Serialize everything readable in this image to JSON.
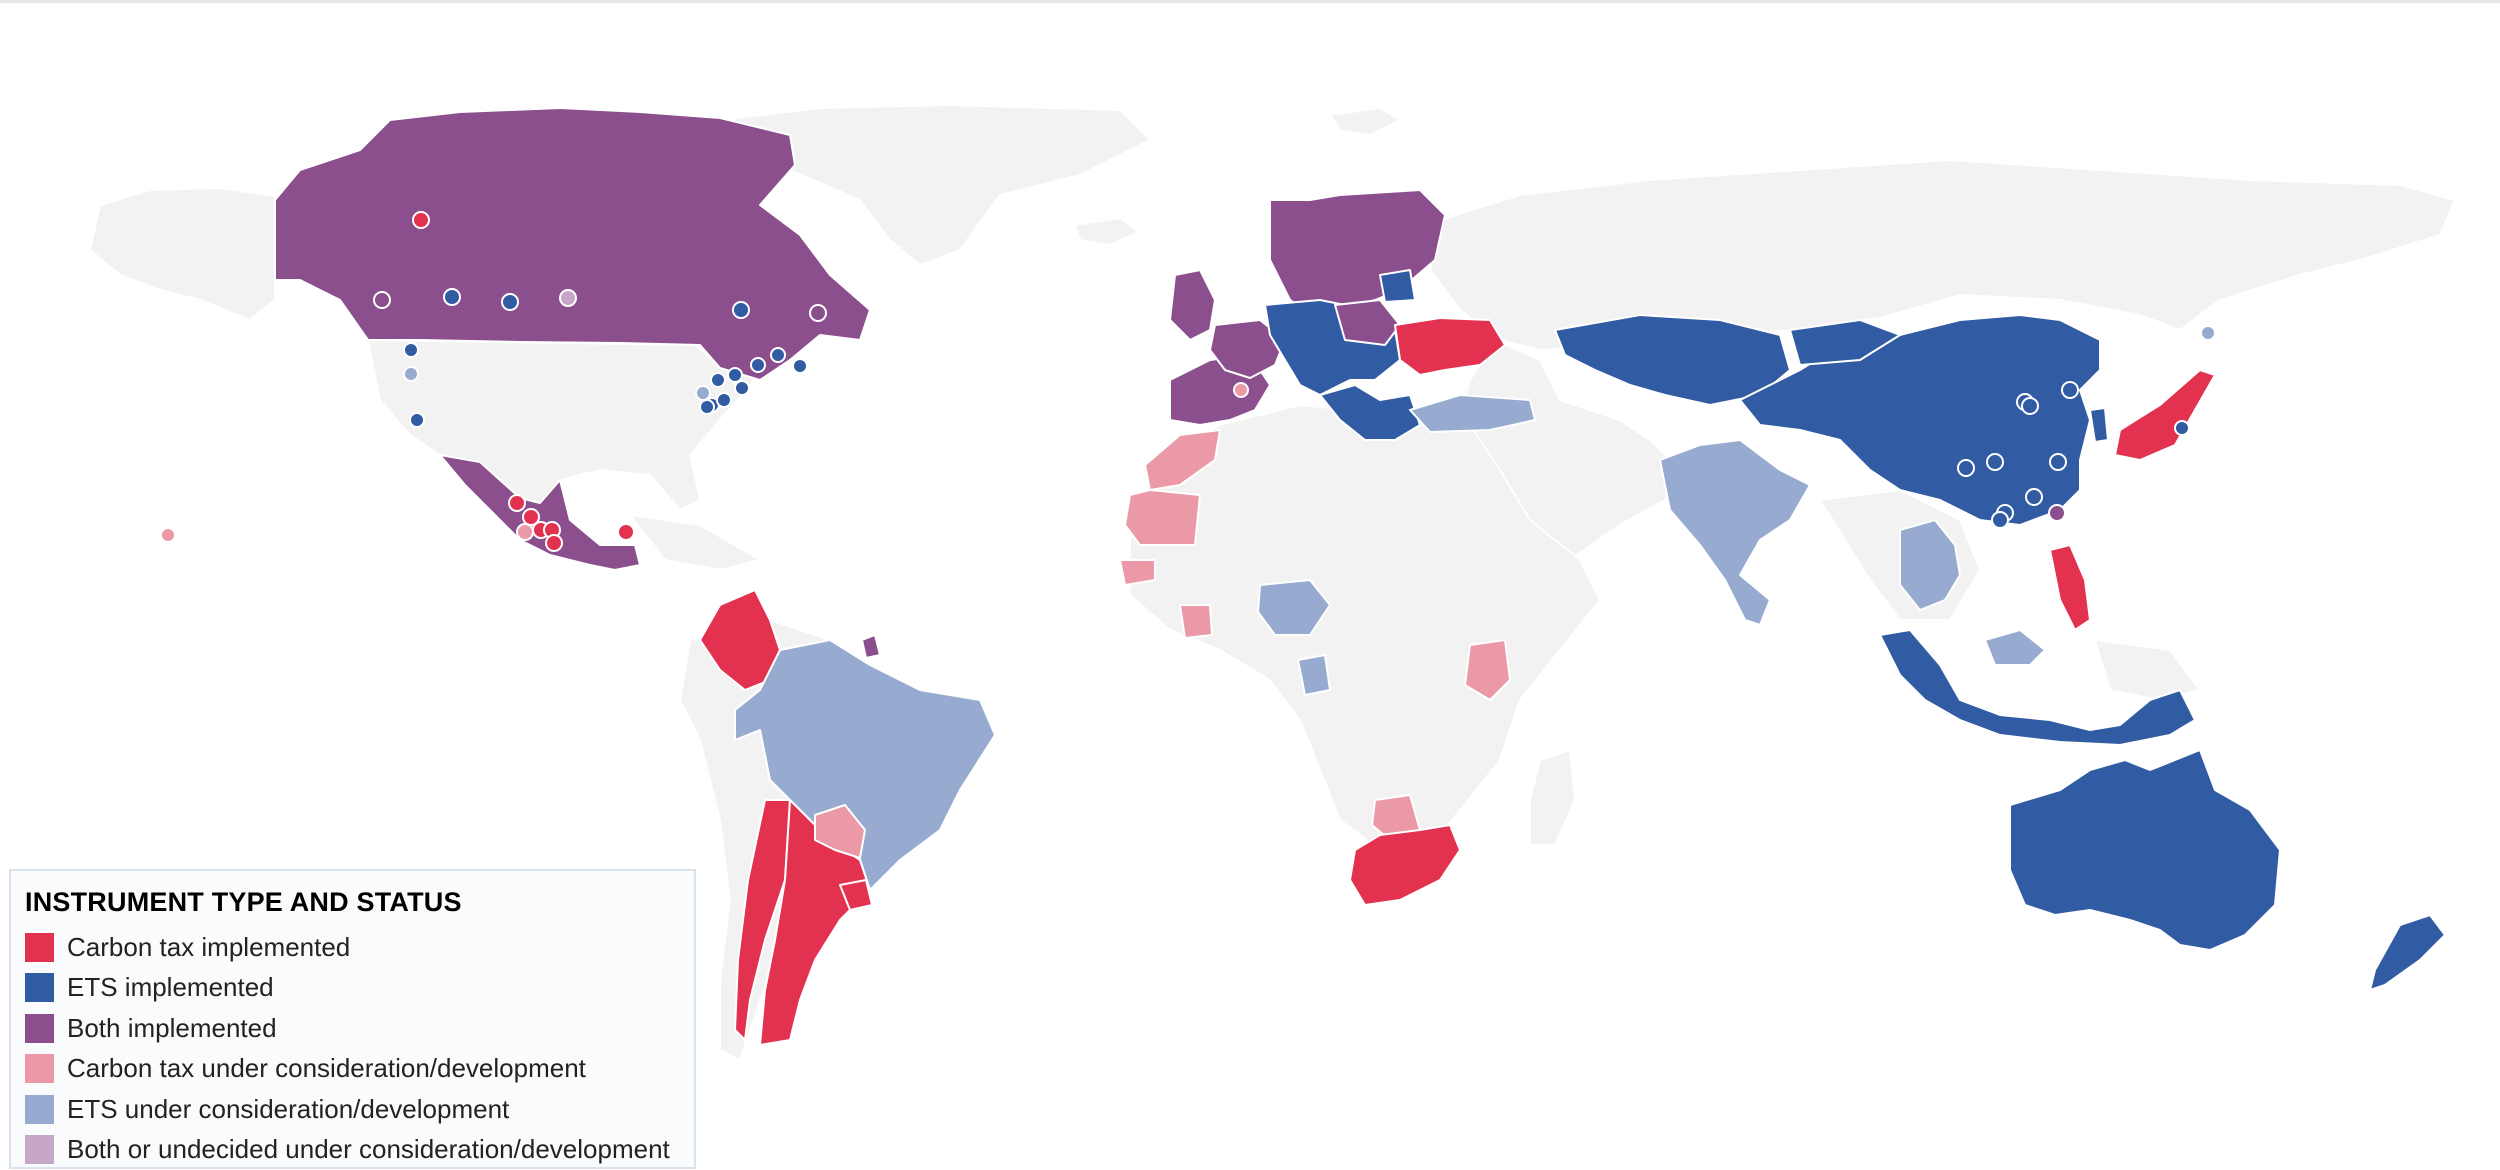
{
  "legend": {
    "title": "INSTRUMENT TYPE AND STATUS",
    "items": [
      {
        "label": "Carbon tax implemented",
        "color": "#e3324f"
      },
      {
        "label": "ETS implemented",
        "color": "#315ba3"
      },
      {
        "label": "Both implemented",
        "color": "#8c4f8e"
      },
      {
        "label": "Carbon tax under consideration/development",
        "color": "#eb98a7"
      },
      {
        "label": "ETS under consideration/development",
        "color": "#97abd0"
      },
      {
        "label": "Both or undecided under consideration/development",
        "color": "#c6a7c8"
      }
    ]
  },
  "colors": {
    "land_default": "#f2f2f2",
    "ocean": "#ffffff",
    "border": "#ffffff"
  }
}
